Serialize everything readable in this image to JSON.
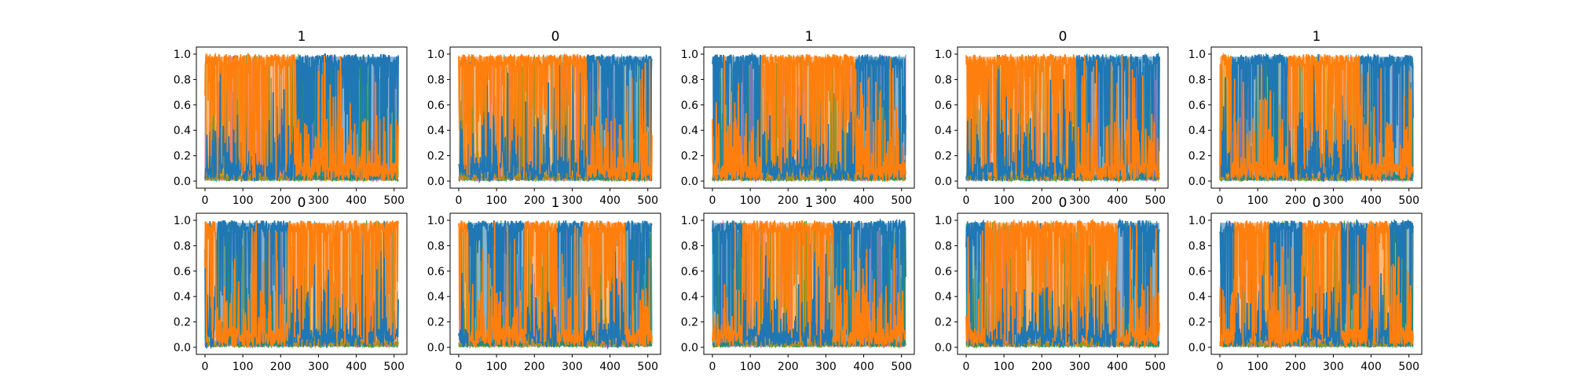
{
  "chart_data": {
    "type": "line",
    "layout": "2x5 small multiples",
    "colors": {
      "blue": "#1f77b4",
      "orange": "#ff7f0e",
      "cyan": "#17becf",
      "olive": "#bcbd22",
      "pink": "#e377c2",
      "green": "#2ca02c",
      "red": "#d62728"
    },
    "xlim": [
      0,
      511
    ],
    "ylim": [
      0.0,
      1.0
    ],
    "xticks": [
      "0",
      "100",
      "200",
      "300",
      "400",
      "500"
    ],
    "yticks": [
      "0.0",
      "0.2",
      "0.4",
      "0.6",
      "0.8",
      "1.0"
    ],
    "grid": false,
    "legend": "none",
    "series_note": "each panel shows class-probability traces over 512 steps; the orange and blue traces swap dominance at the segment boundaries",
    "panels": [
      {
        "title": "1",
        "segments": [
          [
            0,
            240,
            "orange"
          ],
          [
            240,
            511,
            "blue"
          ]
        ]
      },
      {
        "title": "0",
        "segments": [
          [
            0,
            340,
            "orange"
          ],
          [
            340,
            511,
            "blue"
          ]
        ]
      },
      {
        "title": "1",
        "segments": [
          [
            0,
            130,
            "blue"
          ],
          [
            130,
            380,
            "orange"
          ],
          [
            380,
            511,
            "blue"
          ]
        ]
      },
      {
        "title": "0",
        "segments": [
          [
            0,
            290,
            "orange"
          ],
          [
            290,
            511,
            "blue"
          ]
        ]
      },
      {
        "title": "1",
        "segments": [
          [
            0,
            30,
            "orange"
          ],
          [
            30,
            180,
            "blue"
          ],
          [
            180,
            370,
            "orange"
          ],
          [
            370,
            511,
            "blue"
          ]
        ]
      },
      {
        "title": "0",
        "segments": [
          [
            0,
            30,
            "orange"
          ],
          [
            30,
            220,
            "blue"
          ],
          [
            220,
            511,
            "orange"
          ]
        ]
      },
      {
        "title": "1",
        "segments": [
          [
            0,
            25,
            "orange"
          ],
          [
            25,
            175,
            "blue"
          ],
          [
            175,
            260,
            "orange"
          ],
          [
            260,
            330,
            "blue"
          ],
          [
            330,
            440,
            "orange"
          ],
          [
            440,
            511,
            "blue"
          ]
        ]
      },
      {
        "title": "1",
        "segments": [
          [
            0,
            80,
            "blue"
          ],
          [
            80,
            320,
            "orange"
          ],
          [
            320,
            511,
            "blue"
          ]
        ]
      },
      {
        "title": "0",
        "segments": [
          [
            0,
            50,
            "blue"
          ],
          [
            50,
            400,
            "orange"
          ],
          [
            400,
            511,
            "blue"
          ]
        ]
      },
      {
        "title": "0",
        "segments": [
          [
            0,
            40,
            "blue"
          ],
          [
            40,
            130,
            "orange"
          ],
          [
            130,
            220,
            "blue"
          ],
          [
            220,
            320,
            "orange"
          ],
          [
            320,
            390,
            "blue"
          ],
          [
            390,
            450,
            "orange"
          ],
          [
            450,
            511,
            "blue"
          ]
        ]
      }
    ]
  }
}
